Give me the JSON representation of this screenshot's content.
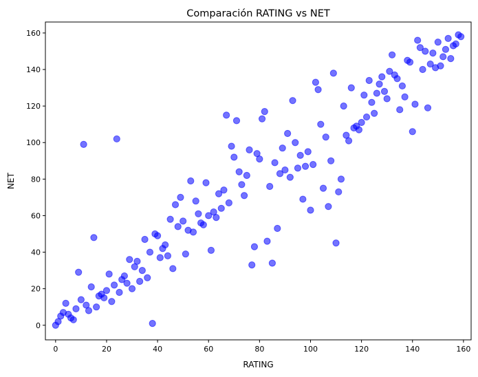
{
  "chart_data": {
    "type": "scatter",
    "title": "Comparación RATING vs NET",
    "xlabel": "RATING",
    "ylabel": "NET",
    "xlim": [
      -4,
      163
    ],
    "ylim": [
      -8,
      166
    ],
    "xticks": [
      "0",
      "20",
      "40",
      "60",
      "80",
      "100",
      "120",
      "140",
      "160"
    ],
    "yticks": [
      "0",
      "20",
      "40",
      "60",
      "80",
      "100",
      "120",
      "140",
      "160"
    ],
    "grid": false,
    "legend": "none",
    "marker_color": "#0000ff",
    "marker_alpha": 0.55,
    "series": [
      {
        "points": [
          [
            0,
            0
          ],
          [
            1,
            2
          ],
          [
            2,
            5
          ],
          [
            3,
            7
          ],
          [
            4,
            12
          ],
          [
            5,
            6
          ],
          [
            6,
            4
          ],
          [
            7,
            3
          ],
          [
            8,
            9
          ],
          [
            9,
            29
          ],
          [
            10,
            14
          ],
          [
            11,
            99
          ],
          [
            12,
            11
          ],
          [
            13,
            8
          ],
          [
            14,
            21
          ],
          [
            15,
            48
          ],
          [
            16,
            10
          ],
          [
            17,
            16
          ],
          [
            18,
            17
          ],
          [
            19,
            15
          ],
          [
            20,
            19
          ],
          [
            21,
            28
          ],
          [
            22,
            13
          ],
          [
            23,
            22
          ],
          [
            24,
            102
          ],
          [
            25,
            18
          ],
          [
            26,
            25
          ],
          [
            27,
            27
          ],
          [
            28,
            23
          ],
          [
            29,
            36
          ],
          [
            30,
            20
          ],
          [
            31,
            32
          ],
          [
            32,
            35
          ],
          [
            33,
            24
          ],
          [
            34,
            30
          ],
          [
            35,
            47
          ],
          [
            36,
            26
          ],
          [
            37,
            40
          ],
          [
            38,
            1
          ],
          [
            39,
            50
          ],
          [
            40,
            49
          ],
          [
            41,
            37
          ],
          [
            42,
            42
          ],
          [
            43,
            44
          ],
          [
            44,
            38
          ],
          [
            45,
            58
          ],
          [
            46,
            31
          ],
          [
            47,
            66
          ],
          [
            48,
            54
          ],
          [
            49,
            70
          ],
          [
            50,
            57
          ],
          [
            51,
            39
          ],
          [
            52,
            52
          ],
          [
            53,
            79
          ],
          [
            54,
            51
          ],
          [
            55,
            68
          ],
          [
            56,
            61
          ],
          [
            57,
            56
          ],
          [
            58,
            55
          ],
          [
            59,
            78
          ],
          [
            60,
            60
          ],
          [
            61,
            41
          ],
          [
            62,
            62
          ],
          [
            63,
            59
          ],
          [
            64,
            72
          ],
          [
            65,
            64
          ],
          [
            66,
            74
          ],
          [
            67,
            115
          ],
          [
            68,
            67
          ],
          [
            69,
            98
          ],
          [
            70,
            92
          ],
          [
            71,
            112
          ],
          [
            72,
            84
          ],
          [
            73,
            77
          ],
          [
            74,
            71
          ],
          [
            75,
            82
          ],
          [
            76,
            96
          ],
          [
            77,
            33
          ],
          [
            78,
            43
          ],
          [
            79,
            94
          ],
          [
            80,
            91
          ],
          [
            81,
            113
          ],
          [
            82,
            117
          ],
          [
            83,
            46
          ],
          [
            84,
            76
          ],
          [
            85,
            34
          ],
          [
            86,
            89
          ],
          [
            87,
            53
          ],
          [
            88,
            83
          ],
          [
            89,
            97
          ],
          [
            90,
            85
          ],
          [
            91,
            105
          ],
          [
            92,
            81
          ],
          [
            93,
            123
          ],
          [
            94,
            100
          ],
          [
            95,
            86
          ],
          [
            96,
            93
          ],
          [
            97,
            69
          ],
          [
            98,
            87
          ],
          [
            99,
            95
          ],
          [
            100,
            63
          ],
          [
            101,
            88
          ],
          [
            102,
            133
          ],
          [
            103,
            129
          ],
          [
            104,
            110
          ],
          [
            105,
            75
          ],
          [
            106,
            103
          ],
          [
            107,
            65
          ],
          [
            108,
            90
          ],
          [
            109,
            138
          ],
          [
            110,
            45
          ],
          [
            111,
            73
          ],
          [
            112,
            80
          ],
          [
            113,
            120
          ],
          [
            114,
            104
          ],
          [
            115,
            101
          ],
          [
            116,
            130
          ],
          [
            117,
            108
          ],
          [
            118,
            109
          ],
          [
            119,
            107
          ],
          [
            120,
            111
          ],
          [
            121,
            126
          ],
          [
            122,
            114
          ],
          [
            123,
            134
          ],
          [
            124,
            122
          ],
          [
            125,
            116
          ],
          [
            126,
            127
          ],
          [
            127,
            132
          ],
          [
            128,
            136
          ],
          [
            129,
            128
          ],
          [
            130,
            124
          ],
          [
            131,
            139
          ],
          [
            132,
            148
          ],
          [
            133,
            137
          ],
          [
            134,
            135
          ],
          [
            135,
            118
          ],
          [
            136,
            131
          ],
          [
            137,
            125
          ],
          [
            138,
            145
          ],
          [
            139,
            144
          ],
          [
            140,
            106
          ],
          [
            141,
            121
          ],
          [
            142,
            156
          ],
          [
            143,
            152
          ],
          [
            144,
            140
          ],
          [
            145,
            150
          ],
          [
            146,
            119
          ],
          [
            147,
            143
          ],
          [
            148,
            149
          ],
          [
            149,
            141
          ],
          [
            150,
            155
          ],
          [
            151,
            142
          ],
          [
            152,
            147
          ],
          [
            153,
            151
          ],
          [
            154,
            157
          ],
          [
            155,
            146
          ],
          [
            156,
            153
          ],
          [
            157,
            154
          ],
          [
            158,
            159
          ],
          [
            159,
            158
          ]
        ]
      }
    ]
  }
}
